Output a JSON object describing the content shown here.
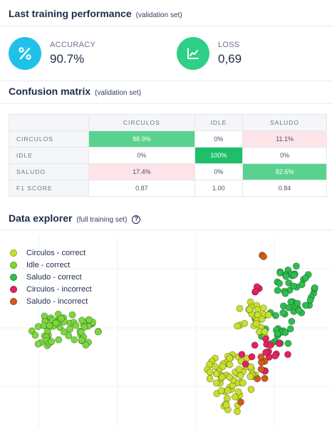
{
  "performance": {
    "title": "Last training performance",
    "subtitle": "(validation set)",
    "accuracy": {
      "label": "ACCURACY",
      "value": "90.7%",
      "icon": "percent-icon",
      "color": "#20c1e8"
    },
    "loss": {
      "label": "LOSS",
      "value": "0,69",
      "icon": "trend-chart-icon",
      "color": "#2ecf86"
    }
  },
  "confusion": {
    "title": "Confusion matrix",
    "subtitle": "(validation set)",
    "columns": [
      "CIRCULOS",
      "IDLE",
      "SALUDO"
    ],
    "rows": [
      {
        "label": "CIRCULOS",
        "cells": [
          "88.9%",
          "0%",
          "11.1%"
        ]
      },
      {
        "label": "IDLE",
        "cells": [
          "0%",
          "100%",
          "0%"
        ]
      },
      {
        "label": "SALUDO",
        "cells": [
          "17.4%",
          "0%",
          "82.6%"
        ]
      },
      {
        "label": "F1 SCORE",
        "cells": [
          "0.87",
          "1.00",
          "0.84"
        ]
      }
    ]
  },
  "explorer": {
    "title": "Data explorer",
    "subtitle": "(full training set)",
    "help_icon": "help-circle-icon",
    "legend": [
      {
        "label": "Circulos - correct",
        "color": "#c8e02a"
      },
      {
        "label": "Idle - correct",
        "color": "#7ad83c"
      },
      {
        "label": "Saludo - correct",
        "color": "#2ebd4f"
      },
      {
        "label": "Circulos - incorrect",
        "color": "#e0245e"
      },
      {
        "label": "Saludo - incorrect",
        "color": "#d45a1c"
      }
    ]
  }
}
